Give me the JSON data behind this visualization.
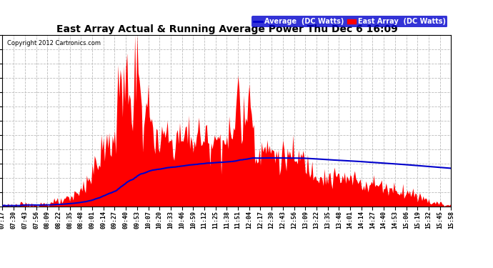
{
  "title": "East Array Actual & Running Average Power Thu Dec 6 16:09",
  "copyright": "Copyright 2012 Cartronics.com",
  "legend_avg": "Average  (DC Watts)",
  "legend_east": "East Array  (DC Watts)",
  "y_max": 602.1,
  "y_min": 0.0,
  "y_ticks": [
    0.0,
    50.2,
    100.4,
    150.5,
    200.7,
    250.9,
    301.1,
    351.2,
    401.4,
    451.6,
    501.8,
    552.0,
    602.1
  ],
  "background_color": "#ffffff",
  "grid_color": "#bbbbbb",
  "bar_color": "#ff0000",
  "avg_line_color": "#0000cc",
  "x_labels": [
    "07:17",
    "07:30",
    "07:43",
    "07:56",
    "08:09",
    "08:22",
    "08:35",
    "08:48",
    "09:01",
    "09:14",
    "09:27",
    "09:40",
    "09:53",
    "10:07",
    "10:20",
    "10:33",
    "10:46",
    "10:59",
    "11:12",
    "11:25",
    "11:38",
    "11:51",
    "12:04",
    "12:17",
    "12:30",
    "12:43",
    "12:56",
    "13:09",
    "13:22",
    "13:35",
    "13:48",
    "14:01",
    "14:14",
    "14:27",
    "14:40",
    "14:53",
    "15:06",
    "15:19",
    "15:32",
    "15:45",
    "15:58"
  ]
}
